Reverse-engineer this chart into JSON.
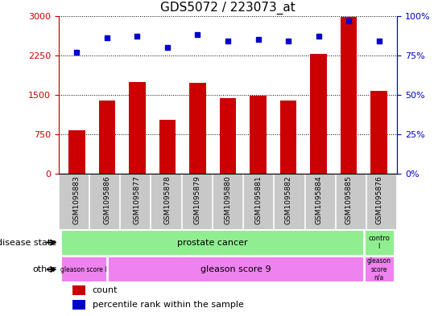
{
  "title": "GDS5072 / 223073_at",
  "samples": [
    "GSM1095883",
    "GSM1095886",
    "GSM1095877",
    "GSM1095878",
    "GSM1095879",
    "GSM1095880",
    "GSM1095881",
    "GSM1095882",
    "GSM1095884",
    "GSM1095885",
    "GSM1095876"
  ],
  "counts": [
    820,
    1390,
    1750,
    1020,
    1730,
    1430,
    1490,
    1390,
    2270,
    2980,
    1570
  ],
  "percentile_ranks": [
    77,
    86,
    87,
    80,
    88,
    84,
    85,
    84,
    87,
    97,
    84
  ],
  "bar_color": "#cc0000",
  "dot_color": "#0000cc",
  "ylim_left": [
    0,
    3000
  ],
  "yticks_left": [
    0,
    750,
    1500,
    2250,
    3000
  ],
  "ylim_right": [
    0,
    100
  ],
  "yticks_right": [
    0,
    25,
    50,
    75,
    100
  ],
  "xlabel_bg": "#c8c8c8",
  "disease_color": "#90ee90",
  "other_color": "#ee82ee",
  "control_color": "#90ee90",
  "background_color": "#ffffff",
  "title_fontsize": 11,
  "tick_fontsize": 8,
  "sample_fontsize": 6.5,
  "anno_fontsize": 8,
  "legend_fontsize": 8
}
